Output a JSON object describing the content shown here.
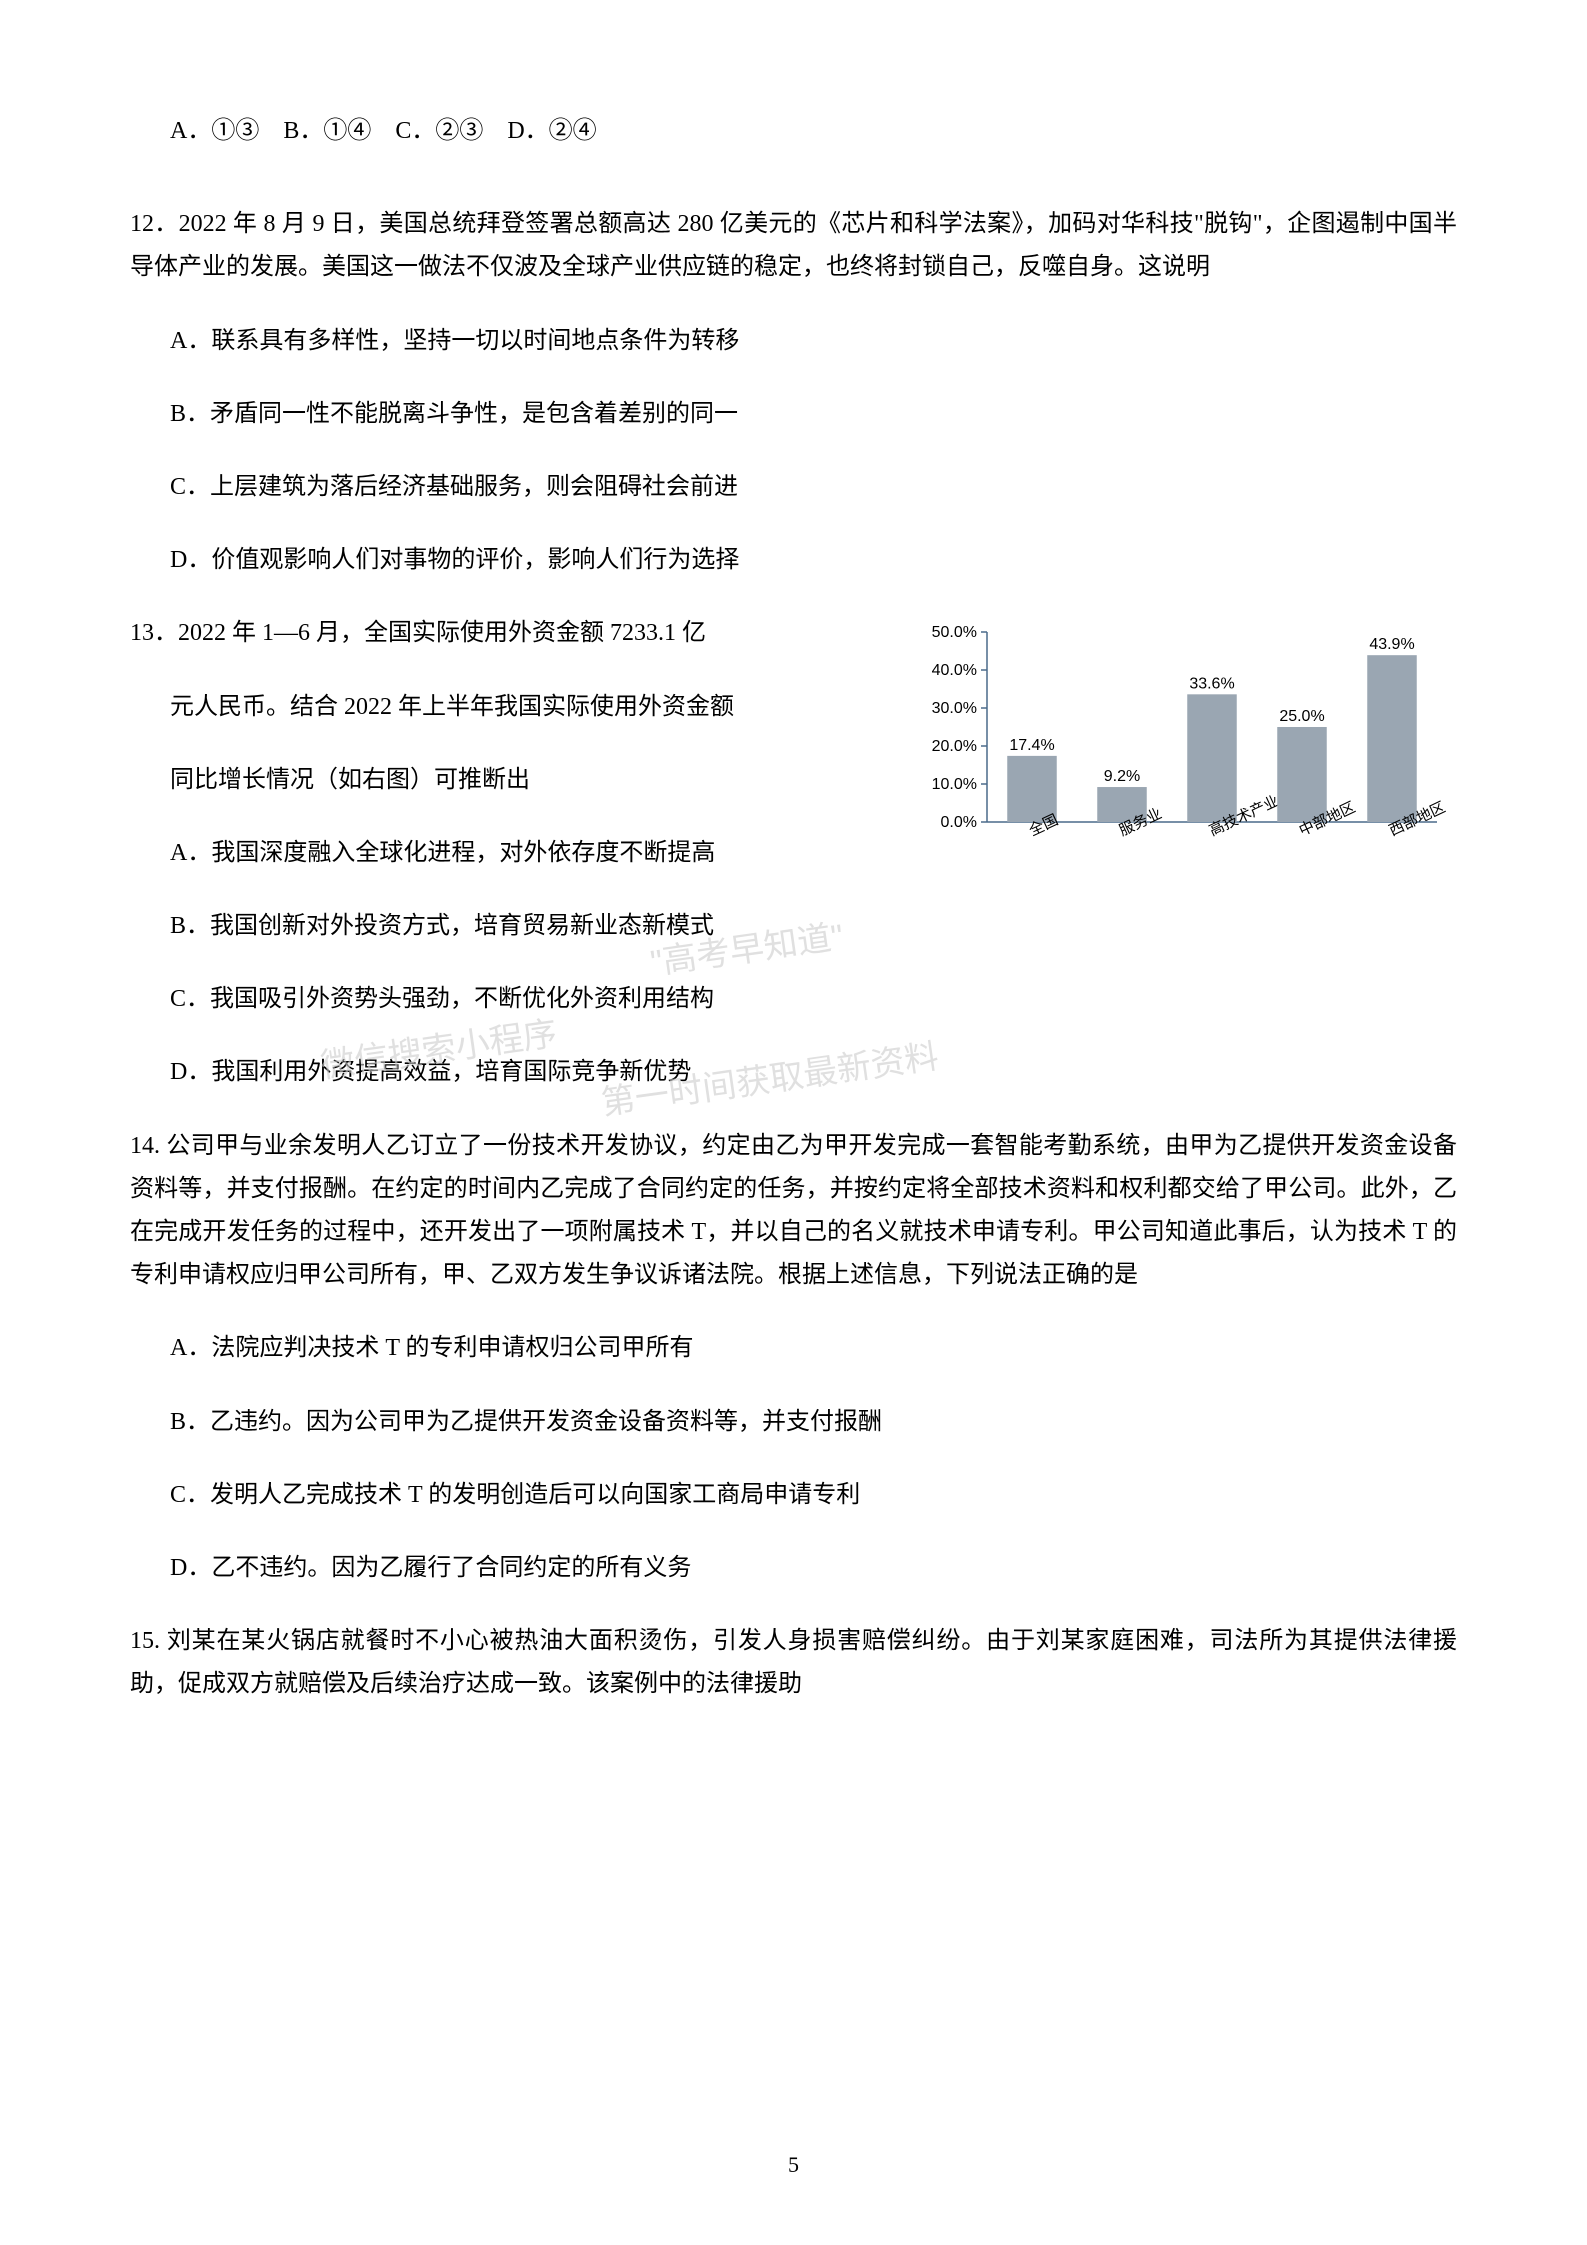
{
  "q11_options": "A．①③　B．①④　C．②③　D．②④",
  "q12": {
    "stem": "12．2022 年 8 月 9 日，美国总统拜登签署总额高达 280 亿美元的《芯片和科学法案》，加码对华科技\"脱钩\"，企图遏制中国半导体产业的发展。美国这一做法不仅波及全球产业供应链的稳定，也终将封锁自己，反噬自身。这说明",
    "A": "A．联系具有多样性，坚持一切以时间地点条件为转移",
    "B": "B．矛盾同一性不能脱离斗争性，是包含着差别的同一",
    "C": "C．上层建筑为落后经济基础服务，则会阻碍社会前进",
    "D": "D．价值观影响人们对事物的评价，影响人们行为选择"
  },
  "q13": {
    "line1": "13．2022 年 1—6 月，全国实际使用外资金额 7233.1 亿",
    "line2": "元人民币。结合 2022 年上半年我国实际使用外资金额",
    "line3": "同比增长情况（如右图）可推断出",
    "A": "A．我国深度融入全球化进程，对外依存度不断提高",
    "B": "B．我国创新对外投资方式，培育贸易新业态新模式",
    "C": "C．我国吸引外资势头强劲，不断优化外资利用结构",
    "D": "D．我国利用外资提高效益，培育国际竞争新优势"
  },
  "q14": {
    "stem": "14. 公司甲与业余发明人乙订立了一份技术开发协议，约定由乙为甲开发完成一套智能考勤系统，由甲为乙提供开发资金设备资料等，并支付报酬。在约定的时间内乙完成了合同约定的任务，并按约定将全部技术资料和权利都交给了甲公司。此外，乙在完成开发任务的过程中，还开发出了一项附属技术 T，并以自己的名义就技术申请专利。甲公司知道此事后，认为技术 T 的专利申请权应归甲公司所有，甲、乙双方发生争议诉诸法院。根据上述信息，下列说法正确的是",
    "A": "A．法院应判决技术 T 的专利申请权归公司甲所有",
    "B": "B．乙违约。因为公司甲为乙提供开发资金设备资料等，并支付报酬",
    "C": "C．发明人乙完成技术 T 的发明创造后可以向国家工商局申请专利",
    "D": "D．乙不违约。因为乙履行了合同约定的所有义务"
  },
  "q15": {
    "stem": "15. 刘某在某火锅店就餐时不小心被热油大面积烫伤，引发人身损害赔偿纠纷。由于刘某家庭困难，司法所为其提供法律援助，促成双方就赔偿及后续治疗达成一致。该案例中的法律援助"
  },
  "chart": {
    "type": "bar",
    "categories": [
      "全国",
      "服务业",
      "高技术产业",
      "中部地区",
      "西部地区"
    ],
    "values": [
      17.4,
      9.2,
      33.6,
      25.0,
      43.9
    ],
    "bar_color": "#9aa6b2",
    "ymax": 50.0,
    "ytick_step": 10.0,
    "ytick_labels": [
      "0.0%",
      "10.0%",
      "20.0%",
      "30.0%",
      "40.0%",
      "50.0%"
    ],
    "value_labels": [
      "17.4%",
      "9.2%",
      "33.6%",
      "25.0%",
      "43.9%"
    ],
    "axis_color": "#4a6a8a",
    "label_fontsize": 16,
    "background_color": "#ffffff"
  },
  "watermarks": {
    "wm1": "微信搜索小程序",
    "wm2": "\"高考早知道\"",
    "wm3": "第一时间获取最新资料"
  },
  "page_number": "5"
}
